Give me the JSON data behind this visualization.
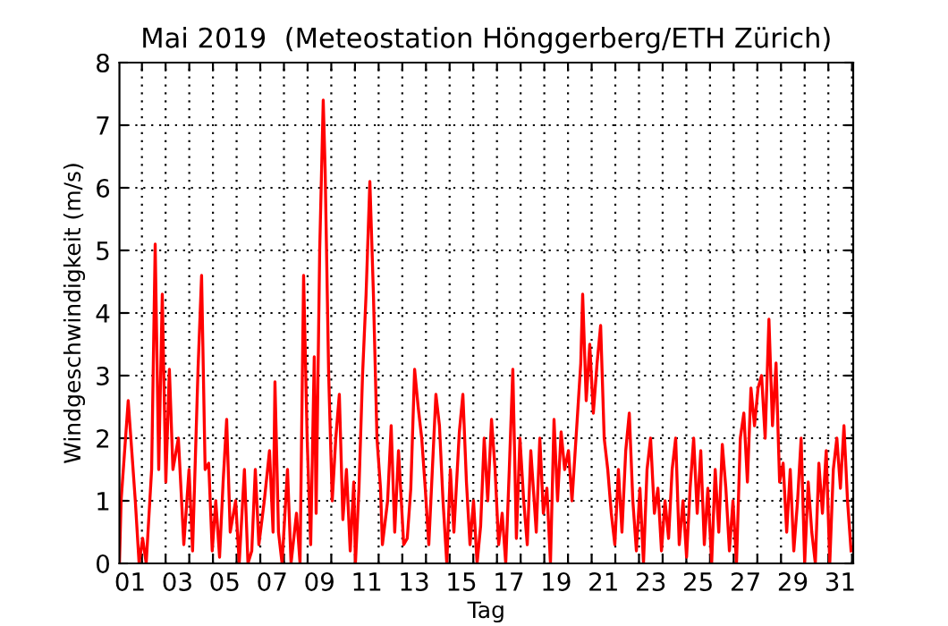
{
  "chart_data": {
    "type": "line",
    "title": "Mai 2019  (Meteostation Hönggerberg/ETH Zürich)",
    "xlabel": "Tag",
    "ylabel": "Windgeschwindigkeit (m/s)",
    "xlim": [
      0.55,
      31.55
    ],
    "ylim": [
      0,
      8
    ],
    "yticks": [
      0,
      1,
      2,
      3,
      4,
      5,
      6,
      7,
      8
    ],
    "xticks": [
      {
        "value": 1,
        "label": "01"
      },
      {
        "value": 3,
        "label": "03"
      },
      {
        "value": 5,
        "label": "05"
      },
      {
        "value": 7,
        "label": "07"
      },
      {
        "value": 9,
        "label": "09"
      },
      {
        "value": 11,
        "label": "11"
      },
      {
        "value": 13,
        "label": "13"
      },
      {
        "value": 15,
        "label": "15"
      },
      {
        "value": 17,
        "label": "17"
      },
      {
        "value": 19,
        "label": "19"
      },
      {
        "value": 21,
        "label": "21"
      },
      {
        "value": 23,
        "label": "23"
      },
      {
        "value": 25,
        "label": "25"
      },
      {
        "value": 27,
        "label": "27"
      },
      {
        "value": 29,
        "label": "29"
      },
      {
        "value": 31,
        "label": "31"
      },
      {
        "value": 1.5,
        "label": null
      },
      {
        "value": 2.5,
        "label": null
      },
      {
        "value": 3.5,
        "label": null
      },
      {
        "value": 4.5,
        "label": null
      },
      {
        "value": 5.5,
        "label": null
      },
      {
        "value": 6.5,
        "label": null
      },
      {
        "value": 7.5,
        "label": null
      },
      {
        "value": 8.5,
        "label": null
      },
      {
        "value": 9.5,
        "label": null
      },
      {
        "value": 10.5,
        "label": null
      },
      {
        "value": 11.5,
        "label": null
      },
      {
        "value": 12.5,
        "label": null
      },
      {
        "value": 13.5,
        "label": null
      },
      {
        "value": 14.5,
        "label": null
      },
      {
        "value": 15.5,
        "label": null
      },
      {
        "value": 16.5,
        "label": null
      },
      {
        "value": 17.5,
        "label": null
      },
      {
        "value": 18.5,
        "label": null
      },
      {
        "value": 19.5,
        "label": null
      },
      {
        "value": 20.5,
        "label": null
      },
      {
        "value": 21.5,
        "label": null
      },
      {
        "value": 22.5,
        "label": null
      },
      {
        "value": 23.5,
        "label": null
      },
      {
        "value": 24.5,
        "label": null
      },
      {
        "value": 25.5,
        "label": null
      },
      {
        "value": 26.5,
        "label": null
      },
      {
        "value": 27.5,
        "label": null
      },
      {
        "value": 28.5,
        "label": null
      },
      {
        "value": 29.5,
        "label": null
      },
      {
        "value": 30.5,
        "label": null
      },
      {
        "value": 31.5,
        "label": null
      }
    ],
    "grid": true,
    "line_style": "solid",
    "marker": "none",
    "series": [
      {
        "color": "#ff0000",
        "x": [
          0.55,
          0.62,
          0.92,
          1.22,
          1.38,
          1.53,
          1.68,
          1.91,
          2.06,
          2.21,
          2.36,
          2.51,
          2.66,
          2.81,
          3.04,
          3.27,
          3.49,
          3.64,
          3.87,
          4.02,
          4.17,
          4.32,
          4.47,
          4.62,
          4.78,
          4.93,
          5.08,
          5.23,
          5.46,
          5.61,
          5.83,
          5.98,
          6.14,
          6.29,
          6.44,
          6.67,
          6.89,
          7.04,
          7.12,
          7.27,
          7.42,
          7.65,
          7.8,
          8.03,
          8.18,
          8.33,
          8.48,
          8.63,
          8.78,
          8.86,
          9.01,
          9.16,
          9.24,
          9.39,
          9.54,
          9.69,
          9.84,
          9.99,
          10.14,
          10.3,
          10.45,
          10.52,
          10.67,
          10.82,
          10.97,
          11.13,
          11.28,
          11.43,
          11.58,
          11.66,
          11.88,
          12.03,
          12.18,
          12.34,
          12.56,
          12.71,
          12.86,
          13.02,
          13.17,
          13.32,
          13.47,
          13.62,
          13.77,
          13.92,
          14.07,
          14.22,
          14.38,
          14.53,
          14.68,
          14.91,
          15.06,
          15.21,
          15.36,
          15.51,
          15.66,
          15.81,
          15.96,
          16.11,
          16.27,
          16.42,
          16.57,
          16.72,
          16.87,
          17.02,
          17.17,
          17.32,
          17.47,
          17.63,
          17.78,
          17.93,
          18.16,
          18.31,
          18.46,
          18.61,
          18.76,
          18.91,
          19.06,
          19.21,
          19.36,
          19.52,
          19.67,
          19.89,
          20.04,
          20.12,
          20.27,
          20.42,
          20.57,
          20.73,
          20.88,
          21.03,
          21.18,
          21.33,
          21.48,
          21.63,
          21.78,
          21.94,
          22.09,
          22.24,
          22.39,
          22.54,
          22.69,
          22.84,
          22.99,
          23.15,
          23.3,
          23.45,
          23.6,
          23.75,
          23.9,
          24.05,
          24.2,
          24.36,
          24.51,
          24.66,
          24.81,
          24.96,
          25.11,
          25.26,
          25.41,
          25.57,
          25.72,
          25.87,
          26.02,
          26.17,
          26.32,
          26.47,
          26.62,
          26.78,
          26.93,
          27.08,
          27.23,
          27.38,
          27.53,
          27.68,
          27.83,
          27.99,
          28.14,
          28.29,
          28.44,
          28.59,
          28.74,
          28.89,
          29.04,
          29.2,
          29.35,
          29.5,
          29.65,
          29.8,
          29.95,
          30.1,
          30.25,
          30.41,
          30.56,
          30.71,
          30.86,
          31.01,
          31.16,
          31.31,
          31.46
        ],
        "values": [
          0,
          1.0,
          2.6,
          1.0,
          0,
          0.4,
          0,
          1.5,
          5.1,
          1.5,
          4.3,
          1.3,
          3.1,
          1.5,
          2.0,
          0.3,
          1.5,
          0.2,
          3.1,
          4.6,
          1.5,
          1.6,
          0.2,
          1.0,
          0.1,
          1.3,
          2.3,
          0.5,
          1.0,
          0,
          1.5,
          0,
          0.2,
          1.5,
          0.3,
          1.0,
          1.8,
          0.5,
          2.9,
          0.5,
          0,
          1.5,
          0,
          0.8,
          0,
          4.6,
          2.0,
          0.3,
          3.3,
          0.8,
          5.0,
          7.4,
          6.3,
          3.0,
          1.0,
          2.0,
          2.7,
          0.7,
          1.5,
          0.2,
          1.3,
          0,
          1.2,
          3.0,
          4.3,
          6.1,
          4.3,
          2.0,
          1.2,
          0.3,
          1.0,
          2.2,
          0.5,
          1.8,
          0.3,
          0.4,
          1.2,
          3.1,
          2.5,
          2.0,
          1.2,
          0.3,
          1.5,
          2.7,
          2.2,
          1.0,
          0,
          1.5,
          0.5,
          2.1,
          2.7,
          1.3,
          0.3,
          1.0,
          0,
          0.6,
          2.0,
          1.0,
          2.3,
          1.5,
          0.3,
          0.8,
          0,
          1.5,
          3.1,
          0.4,
          2.0,
          1.0,
          0.3,
          1.8,
          0.5,
          2.0,
          0.8,
          1.2,
          0,
          2.3,
          1.0,
          2.1,
          1.5,
          1.8,
          1.0,
          2.3,
          3.2,
          4.3,
          2.6,
          3.5,
          2.4,
          3.2,
          3.8,
          2.0,
          1.5,
          0.8,
          0.3,
          1.5,
          0.5,
          1.8,
          2.4,
          1.0,
          0.2,
          1.2,
          0,
          1.5,
          2.0,
          0.8,
          1.2,
          0.2,
          1.0,
          0.4,
          1.5,
          2.0,
          0.3,
          1.0,
          0.1,
          1.2,
          2.0,
          0.8,
          1.8,
          0.3,
          1.2,
          0,
          1.5,
          0.5,
          1.9,
          1.2,
          0.2,
          1.0,
          0,
          2.0,
          2.4,
          1.3,
          2.8,
          2.2,
          2.8,
          3.0,
          2.0,
          3.9,
          2.2,
          3.2,
          1.3,
          1.6,
          0.5,
          1.5,
          0.2,
          1.0,
          2.0,
          0,
          1.3,
          0.5,
          0,
          1.6,
          0.8,
          1.8,
          0,
          1.5,
          2.0,
          1.2,
          2.2,
          1.0,
          0.2
        ]
      }
    ]
  }
}
